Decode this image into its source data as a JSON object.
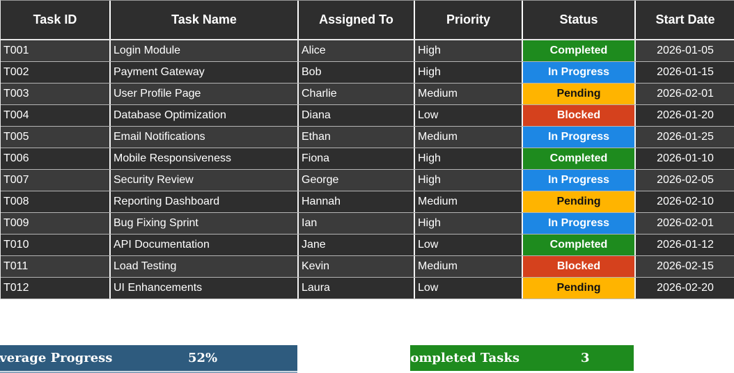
{
  "table": {
    "columns": [
      {
        "label": "Task ID"
      },
      {
        "label": "Task Name"
      },
      {
        "label": "Assigned To"
      },
      {
        "label": "Priority"
      },
      {
        "label": "Status"
      },
      {
        "label": "Start Date"
      }
    ],
    "rows": [
      {
        "task_id": "T001",
        "task_name": "Login Module",
        "assigned_to": "Alice",
        "priority": "High",
        "status": "Completed",
        "start_date": "2026-01-05"
      },
      {
        "task_id": "T002",
        "task_name": "Payment Gateway",
        "assigned_to": "Bob",
        "priority": "High",
        "status": "In Progress",
        "start_date": "2026-01-15"
      },
      {
        "task_id": "T003",
        "task_name": "User Profile Page",
        "assigned_to": "Charlie",
        "priority": "Medium",
        "status": "Pending",
        "start_date": "2026-02-01"
      },
      {
        "task_id": "T004",
        "task_name": "Database Optimization",
        "assigned_to": "Diana",
        "priority": "Low",
        "status": "Blocked",
        "start_date": "2026-01-20"
      },
      {
        "task_id": "T005",
        "task_name": "Email Notifications",
        "assigned_to": "Ethan",
        "priority": "Medium",
        "status": "In Progress",
        "start_date": "2026-01-25"
      },
      {
        "task_id": "T006",
        "task_name": "Mobile Responsiveness",
        "assigned_to": "Fiona",
        "priority": "High",
        "status": "Completed",
        "start_date": "2026-01-10"
      },
      {
        "task_id": "T007",
        "task_name": "Security Review",
        "assigned_to": "George",
        "priority": "High",
        "status": "In Progress",
        "start_date": "2026-02-05"
      },
      {
        "task_id": "T008",
        "task_name": "Reporting Dashboard",
        "assigned_to": "Hannah",
        "priority": "Medium",
        "status": "Pending",
        "start_date": "2026-02-10"
      },
      {
        "task_id": "T009",
        "task_name": "Bug Fixing Sprint",
        "assigned_to": "Ian",
        "priority": "High",
        "status": "In Progress",
        "start_date": "2026-02-01"
      },
      {
        "task_id": "T010",
        "task_name": "API Documentation",
        "assigned_to": "Jane",
        "priority": "Low",
        "status": "Completed",
        "start_date": "2026-01-12"
      },
      {
        "task_id": "T011",
        "task_name": "Load Testing",
        "assigned_to": "Kevin",
        "priority": "Medium",
        "status": "Blocked",
        "start_date": "2026-02-15"
      },
      {
        "task_id": "T012",
        "task_name": "UI Enhancements",
        "assigned_to": "Laura",
        "priority": "Low",
        "status": "Pending",
        "start_date": "2026-02-20"
      }
    ]
  },
  "status_colors": {
    "Completed": {
      "bg": "#1e8b1e",
      "text": "#ffffff"
    },
    "In Progress": {
      "bg": "#1d87e4",
      "text": "#ffffff"
    },
    "Pending": {
      "bg": "#ffb400",
      "text": "#111111"
    },
    "Blocked": {
      "bg": "#d5411d",
      "text": "#ffffff"
    }
  },
  "theme": {
    "header_bg": "#2e2e2e",
    "row_odd_bg": "#3b3b3b",
    "row_even_bg": "#2e2e2e"
  },
  "kpis": [
    {
      "label": "Average Progress",
      "value": "52%",
      "color": "#2e5b7e"
    },
    {
      "label": "Completed Tasks",
      "value": "3",
      "color": "#1e8b1e"
    }
  ]
}
